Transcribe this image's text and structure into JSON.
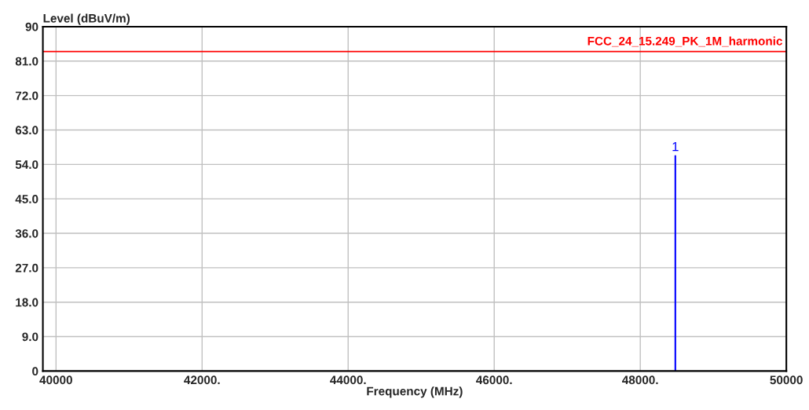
{
  "chart_data": {
    "type": "line",
    "ylabel": "Level (dBuV/m)",
    "xlabel": "Frequency (MHz)",
    "series": [
      {
        "color": "#0000ff",
        "x": [
          48480,
          48480
        ],
        "values": [
          0,
          56.2
        ]
      }
    ],
    "xlim": [
      39820,
      50000
    ],
    "xticks": [
      40000,
      {
        "value": 42000,
        "label": "42000."
      },
      {
        "value": 44000,
        "label": "44000."
      },
      {
        "value": 46000,
        "label": "46000."
      },
      {
        "value": 48000,
        "label": "48000."
      },
      50000
    ],
    "ylim": [
      0,
      90
    ],
    "yticks": [
      0,
      {
        "value": 9,
        "label": "9.0"
      },
      {
        "value": 18,
        "label": "18.0"
      },
      {
        "value": 27,
        "label": "27.0"
      },
      {
        "value": 36,
        "label": "36.0"
      },
      {
        "value": 45,
        "label": "45.0"
      },
      {
        "value": 54,
        "label": "54.0"
      },
      {
        "value": 63,
        "label": "63.0"
      },
      {
        "value": 72,
        "label": "72.0"
      },
      {
        "value": 81,
        "label": "81.0"
      },
      90
    ],
    "ref_lines": [
      {
        "axis": "y",
        "value": 83.5,
        "label": "FCC_24_15.249_PK_1M_harmonic",
        "color": "#ff0000"
      }
    ],
    "annotations": [
      {
        "text": "1",
        "x": 48480,
        "y": 56.2
      }
    ],
    "grid": true
  }
}
